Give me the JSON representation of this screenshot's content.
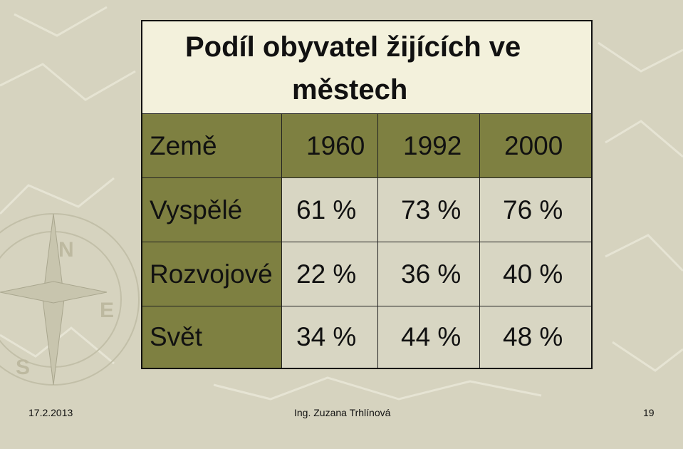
{
  "slide": {
    "title_line1": "Podíl obyvatel žijících ve",
    "title_line2": "městech"
  },
  "table": {
    "headers": [
      "Země",
      "1960",
      "1992",
      "2000"
    ],
    "rows": [
      [
        "Vyspělé",
        "61 %",
        "73 %",
        "76 %"
      ],
      [
        "Rozvojové",
        "22 %",
        "36 %",
        "40 %"
      ],
      [
        "Svět",
        "34 %",
        "44 %",
        "48 %"
      ]
    ]
  },
  "footer": {
    "date": "17.2.2013",
    "author": "Ing. Zuzana Trhlínová",
    "page": "19"
  },
  "colors": {
    "background": "#d6d3bf",
    "header_fill": "#7e8041",
    "cell_fill": "#d8d6c3",
    "title_fill": "#f3f1dc"
  }
}
